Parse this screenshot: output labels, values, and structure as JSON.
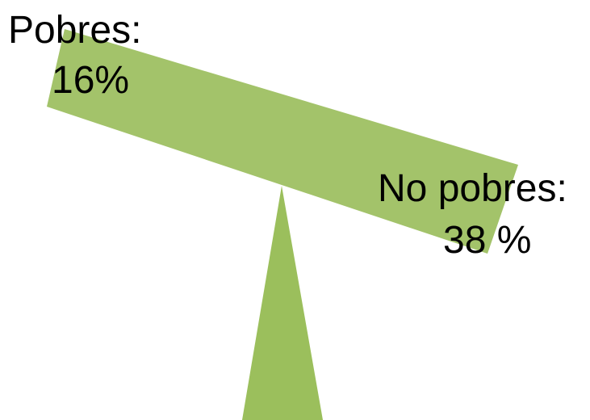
{
  "diagram": {
    "colors": {
      "beam": "#a3c36a",
      "fulcrum": "#9bbf5c",
      "background": "#ffffff",
      "text": "#000000"
    },
    "labels": {
      "poor_title": "Pobres:",
      "poor_value": "16%",
      "nonpoor_title": "No pobres:",
      "nonpoor_value": "38 %"
    }
  }
}
